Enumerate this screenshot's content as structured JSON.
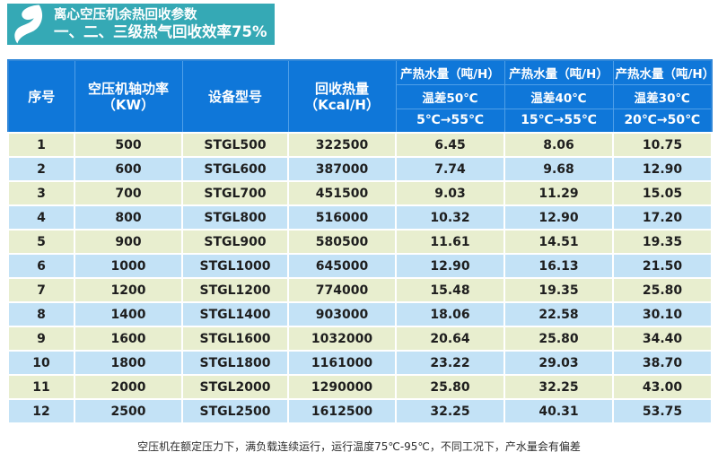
{
  "banner": {
    "logo": "s-swoosh-logo",
    "title_line1": "离心空压机余热回收参数",
    "title_line2": "一、二、三级热气回收效率75%"
  },
  "table": {
    "header": {
      "serial": "序号",
      "power_line1": "空压机轴功率",
      "power_line2": "（KW）",
      "model": "设备型号",
      "heat_line1": "回收热量",
      "heat_line2": "（Kcal/H）",
      "water_cols": [
        {
          "title": "产热水量（吨/H）",
          "diff": "温差50℃",
          "range": "5℃→55℃"
        },
        {
          "title": "产热水量（吨/H）",
          "diff": "温差40℃",
          "range": "15℃→55℃"
        },
        {
          "title": "产热水量（吨/H）",
          "diff": "温差30℃",
          "range": "20℃→50℃"
        }
      ]
    },
    "column_keys": [
      "serial",
      "power-kw",
      "model",
      "heat-kcal",
      "water-50c",
      "water-40c",
      "water-30c"
    ],
    "rows": [
      [
        "1",
        "500",
        "STGL500",
        "322500",
        "6.45",
        "8.06",
        "10.75"
      ],
      [
        "2",
        "600",
        "STGL600",
        "387000",
        "7.74",
        "9.68",
        "12.90"
      ],
      [
        "3",
        "700",
        "STGL700",
        "451500",
        "9.03",
        "11.29",
        "15.05"
      ],
      [
        "4",
        "800",
        "STGL800",
        "516000",
        "10.32",
        "12.90",
        "17.20"
      ],
      [
        "5",
        "900",
        "STGL900",
        "580500",
        "11.61",
        "14.51",
        "19.35"
      ],
      [
        "6",
        "1000",
        "STGL1000",
        "645000",
        "12.90",
        "16.13",
        "21.50"
      ],
      [
        "7",
        "1200",
        "STGL1200",
        "774000",
        "15.48",
        "19.35",
        "25.80"
      ],
      [
        "8",
        "1400",
        "STGL1400",
        "903000",
        "18.06",
        "22.58",
        "30.10"
      ],
      [
        "9",
        "1600",
        "STGL1600",
        "1032000",
        "20.64",
        "25.80",
        "34.40"
      ],
      [
        "10",
        "1800",
        "STGL1800",
        "1161000",
        "23.22",
        "29.03",
        "38.70"
      ],
      [
        "11",
        "2000",
        "STGL2000",
        "1290000",
        "25.80",
        "32.25",
        "43.00"
      ],
      [
        "12",
        "2500",
        "STGL2500",
        "1612500",
        "32.25",
        "40.31",
        "53.75"
      ]
    ]
  },
  "footnote": "空压机在额定压力下，满负载连续运行，运行温度75℃-95℃，不同工况下，产水量会有偏差",
  "colors": {
    "banner_bg": "#35a9b5",
    "header_bg": "#0f77d9",
    "header_line": "#4f9fe8",
    "row_odd": "#e8eecf",
    "row_even": "#c3e2f6",
    "table_border": "#2f86d8"
  }
}
